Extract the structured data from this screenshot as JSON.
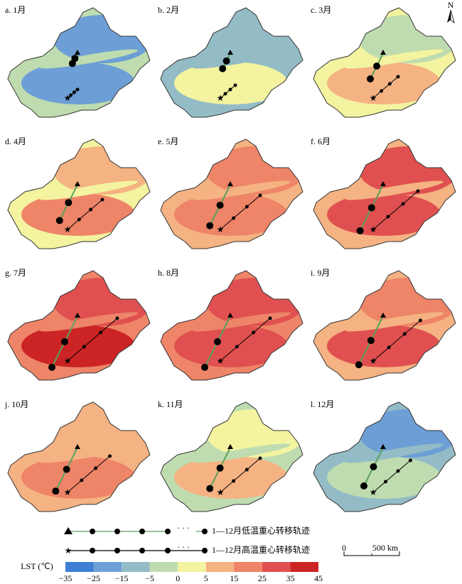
{
  "panels": [
    {
      "label": "a. 1月"
    },
    {
      "label": "b. 2月"
    },
    {
      "label": "c. 3月"
    },
    {
      "label": "d. 4月"
    },
    {
      "label": "e. 5月"
    },
    {
      "label": "f. 6月"
    },
    {
      "label": "g. 7月"
    },
    {
      "label": "h. 8月"
    },
    {
      "label": "i. 9月"
    },
    {
      "label": "j. 10月"
    },
    {
      "label": "k. 11月"
    },
    {
      "label": "l. 12月"
    }
  ],
  "north_arrow": "N",
  "legend": {
    "low_track": "1—12月低温重心转移轨迹",
    "high_track": "1—12月高温重心转移轨迹",
    "ellipsis": "· · ·"
  },
  "scale_bar": {
    "zero": "0",
    "distance": "500 km"
  },
  "colorbar": {
    "title": "LST (℃)",
    "ticks": [
      "−35",
      "−25",
      "−15",
      "−5",
      "0",
      "5",
      "15",
      "25",
      "35",
      "45"
    ]
  }
}
